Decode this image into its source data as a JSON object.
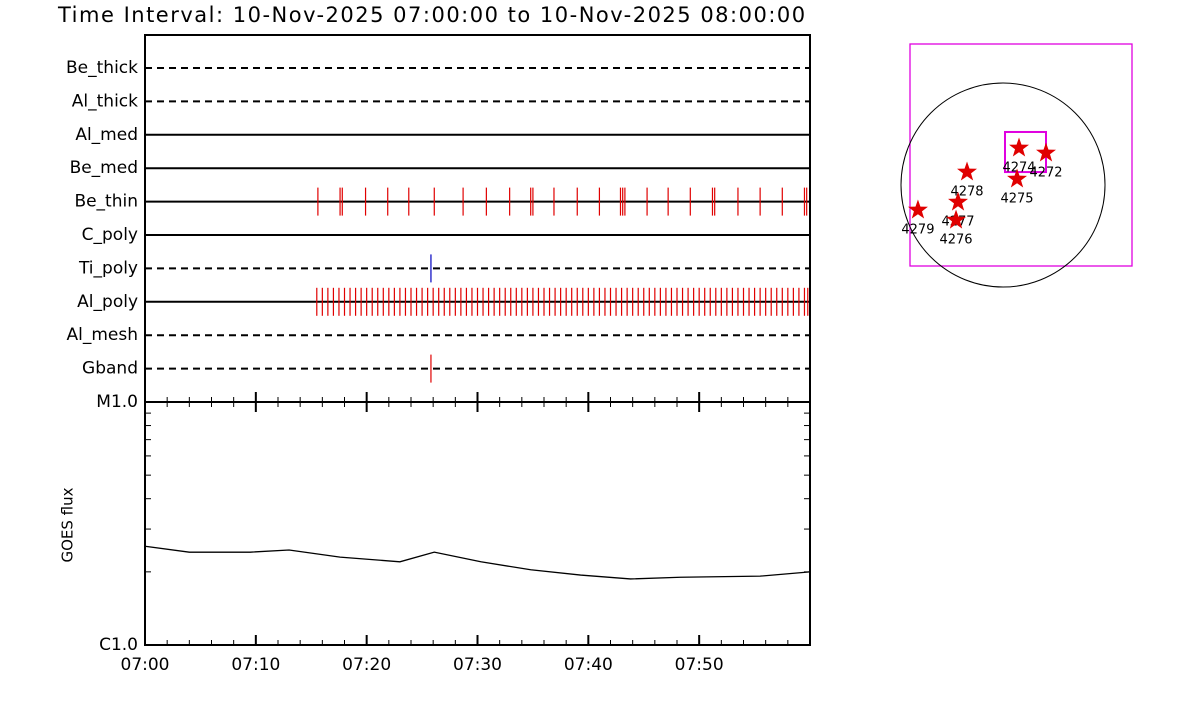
{
  "chart_data": [
    {
      "type": "timeline",
      "title": "Time Interval: 10-Nov-2025 07:00:00 to 10-Nov-2025 08:00:00",
      "xlim": [
        0,
        60
      ],
      "rows": [
        {
          "name": "Be_thick",
          "line": "dashed",
          "events": []
        },
        {
          "name": "Al_thick",
          "line": "dashed",
          "events": []
        },
        {
          "name": "Al_med",
          "line": "solid",
          "events": []
        },
        {
          "name": "Be_med",
          "line": "solid",
          "events": []
        },
        {
          "name": "Be_thin",
          "line": "solid",
          "color": "#e00000",
          "events": [
            15.6,
            17.6,
            17.8,
            19.9,
            21.9,
            23.8,
            26.1,
            28.7,
            30.8,
            32.9,
            34.8,
            35.0,
            36.9,
            39.0,
            41.0,
            42.9,
            43.1,
            43.3,
            45.3,
            47.2,
            49.2,
            51.2,
            51.4,
            53.5,
            55.5,
            57.5,
            59.5,
            59.7
          ]
        },
        {
          "name": "C_poly",
          "line": "solid",
          "events": []
        },
        {
          "name": "Ti_poly",
          "line": "dashed",
          "color": "#0000c0",
          "events": [
            25.8
          ]
        },
        {
          "name": "Al_poly",
          "line": "solid",
          "color": "#e00000",
          "events": [
            15.5,
            16.0,
            16.5,
            17.0,
            17.5,
            18.0,
            18.5,
            19.0,
            19.5,
            20.0,
            20.5,
            21.0,
            21.5,
            22.0,
            22.5,
            23.0,
            23.5,
            24.0,
            24.5,
            25.0,
            25.5,
            26.0,
            26.5,
            27.0,
            27.5,
            28.0,
            28.5,
            29.0,
            29.5,
            30.0,
            30.5,
            31.0,
            31.5,
            32.0,
            32.5,
            33.0,
            33.5,
            34.0,
            34.5,
            35.0,
            35.5,
            36.0,
            36.5,
            37.0,
            37.5,
            38.0,
            38.5,
            39.0,
            39.5,
            40.0,
            40.5,
            41.0,
            41.5,
            42.0,
            42.5,
            43.0,
            43.5,
            44.0,
            44.5,
            45.0,
            45.5,
            46.0,
            46.5,
            47.0,
            47.5,
            48.0,
            48.5,
            49.0,
            49.5,
            50.0,
            50.5,
            51.0,
            51.5,
            52.0,
            52.5,
            53.0,
            53.5,
            54.0,
            54.5,
            55.0,
            55.5,
            56.0,
            56.5,
            57.0,
            57.5,
            58.0,
            58.5,
            59.0,
            59.5,
            59.8
          ]
        },
        {
          "name": "Al_mesh",
          "line": "dashed",
          "events": []
        },
        {
          "name": "Gband",
          "line": "dashed",
          "color": "#e00000",
          "events": [
            25.8
          ]
        }
      ]
    },
    {
      "type": "line",
      "y_label": "GOES flux",
      "log_y": true,
      "x": [
        0,
        4,
        9.5,
        13,
        17.6,
        23,
        26.1,
        30.3,
        34.8,
        39.3,
        43.8,
        48.3,
        55.5,
        60
      ],
      "series": [
        {
          "color": "#000000",
          "values": [
            2.55e-06,
            2.41e-06,
            2.41e-06,
            2.46e-06,
            2.3e-06,
            2.2e-06,
            2.41e-06,
            2.2e-06,
            2.04e-06,
            1.94e-06,
            1.87e-06,
            1.9e-06,
            1.92e-06,
            2e-06
          ]
        }
      ],
      "xlim": [
        0,
        60
      ],
      "xticks": [
        {
          "value": 0,
          "label": "07:00"
        },
        {
          "value": 10,
          "label": "07:10"
        },
        {
          "value": 20,
          "label": "07:20"
        },
        {
          "value": 30,
          "label": "07:30"
        },
        {
          "value": 40,
          "label": "07:40"
        },
        {
          "value": 50,
          "label": "07:50"
        }
      ],
      "xminorticks": [
        2,
        4,
        6,
        8,
        12,
        14,
        16,
        18,
        22,
        24,
        26,
        28,
        32,
        34,
        36,
        38,
        42,
        44,
        46,
        48,
        52,
        54,
        56,
        58
      ],
      "ylim": [
        1e-06,
        1e-05
      ],
      "yticks": [
        {
          "value": 1e-06,
          "label": "C1.0"
        },
        {
          "value": 1e-05,
          "label": "M1.0"
        }
      ],
      "yminorticks": [
        2e-06,
        3e-06,
        4e-06,
        5e-06,
        6e-06,
        7e-06,
        8e-06,
        9e-06
      ]
    },
    {
      "type": "map",
      "xlim": [
        -889,
        1233
      ],
      "ylim": [
        -774,
        1348
      ],
      "solar_radius": 975,
      "fov": {
        "x": [
          19,
          411
        ],
        "y": [
          124,
          507
        ]
      },
      "box_color": "#e000e0",
      "marker_color": "#e00000",
      "regions": [
        {
          "name": "4274",
          "x": 153,
          "y": 354
        },
        {
          "name": "4272",
          "x": 411,
          "y": 306
        },
        {
          "name": "4275",
          "x": 134,
          "y": 57
        },
        {
          "name": "4278",
          "x": -344,
          "y": 124
        },
        {
          "name": "4277",
          "x": -430,
          "y": -163
        },
        {
          "name": "4276",
          "x": -449,
          "y": -335
        },
        {
          "name": "4279",
          "x": -813,
          "y": -239
        }
      ]
    }
  ]
}
